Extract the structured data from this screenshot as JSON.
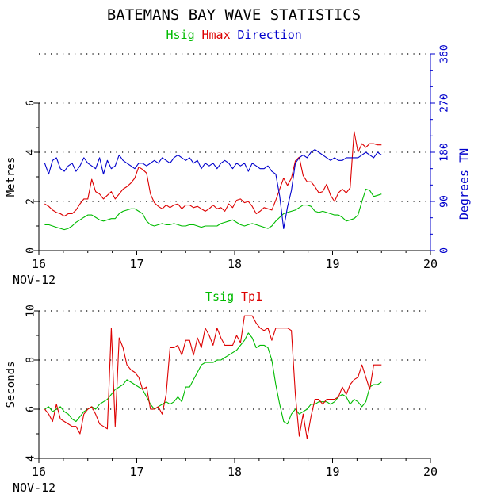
{
  "title": "BATEMANS BAY WAVE STATISTICS",
  "colors": {
    "hsig": "#00bb00",
    "hmax": "#dd0000",
    "direction": "#0000cc",
    "tsig": "#00bb00",
    "tp1": "#dd0000",
    "axis": "#000000",
    "grid": "#000000"
  },
  "chart_data": [
    {
      "type": "line",
      "legend": [
        "Hsig",
        "Hmax",
        "Direction"
      ],
      "x_ticks": [
        "16",
        "17",
        "18",
        "19",
        "20"
      ],
      "x_sub": "NOV-12",
      "xlim": [
        16,
        20
      ],
      "ylabel": "Metres",
      "ylim": [
        0,
        6
      ],
      "y_ticks": [
        "0",
        "2",
        "4",
        "6"
      ],
      "y2label": "Degrees TN",
      "y2lim": [
        0,
        360
      ],
      "y2_ticks": [
        "0",
        "90",
        "180",
        "270",
        "360"
      ],
      "x": [
        16.06,
        16.1,
        16.14,
        16.18,
        16.22,
        16.26,
        16.3,
        16.34,
        16.38,
        16.42,
        16.46,
        16.5,
        16.54,
        16.58,
        16.62,
        16.66,
        16.7,
        16.74,
        16.78,
        16.82,
        16.86,
        16.9,
        16.94,
        16.98,
        17.02,
        17.06,
        17.1,
        17.14,
        17.18,
        17.22,
        17.26,
        17.3,
        17.34,
        17.38,
        17.42,
        17.46,
        17.5,
        17.54,
        17.58,
        17.62,
        17.66,
        17.7,
        17.74,
        17.78,
        17.82,
        17.86,
        17.9,
        17.94,
        17.98,
        18.02,
        18.06,
        18.1,
        18.14,
        18.18,
        18.22,
        18.26,
        18.3,
        18.34,
        18.38,
        18.42,
        18.46,
        18.5,
        18.54,
        18.58,
        18.62,
        18.66,
        18.7,
        18.74,
        18.78,
        18.82,
        18.86,
        18.9,
        18.94,
        18.98,
        19.02,
        19.06,
        19.1,
        19.14,
        19.18,
        19.22,
        19.26,
        19.3,
        19.34,
        19.38,
        19.42,
        19.46,
        19.5
      ],
      "series": [
        {
          "name": "Hsig",
          "axis": "left",
          "values": [
            1.05,
            1.05,
            1.0,
            0.95,
            0.9,
            0.85,
            0.9,
            1.0,
            1.15,
            1.25,
            1.35,
            1.45,
            1.45,
            1.35,
            1.25,
            1.2,
            1.25,
            1.3,
            1.3,
            1.5,
            1.6,
            1.65,
            1.7,
            1.7,
            1.6,
            1.5,
            1.2,
            1.05,
            1.0,
            1.05,
            1.1,
            1.05,
            1.05,
            1.1,
            1.05,
            1.0,
            1.0,
            1.05,
            1.05,
            1.0,
            0.95,
            1.0,
            1.0,
            1.0,
            1.0,
            1.1,
            1.15,
            1.2,
            1.25,
            1.15,
            1.05,
            1.0,
            1.05,
            1.1,
            1.05,
            1.0,
            0.95,
            0.9,
            1.0,
            1.2,
            1.35,
            1.5,
            1.55,
            1.6,
            1.65,
            1.75,
            1.85,
            1.85,
            1.8,
            1.6,
            1.55,
            1.6,
            1.55,
            1.5,
            1.45,
            1.45,
            1.35,
            1.2,
            1.25,
            1.3,
            1.45,
            2.0,
            2.5,
            2.45,
            2.2,
            2.25,
            2.3
          ]
        },
        {
          "name": "Hmax",
          "axis": "left",
          "values": [
            1.9,
            1.8,
            1.65,
            1.55,
            1.5,
            1.4,
            1.5,
            1.5,
            1.65,
            1.9,
            2.1,
            2.1,
            2.9,
            2.4,
            2.3,
            2.1,
            2.25,
            2.4,
            2.1,
            2.3,
            2.5,
            2.6,
            2.75,
            2.95,
            3.4,
            3.3,
            3.15,
            2.3,
            1.95,
            1.8,
            1.7,
            1.85,
            1.75,
            1.85,
            1.9,
            1.7,
            1.85,
            1.85,
            1.75,
            1.8,
            1.7,
            1.6,
            1.7,
            1.85,
            1.7,
            1.75,
            1.6,
            1.9,
            1.75,
            2.05,
            2.1,
            1.95,
            2.0,
            1.8,
            1.5,
            1.6,
            1.75,
            1.7,
            1.65,
            2.05,
            2.5,
            2.95,
            2.65,
            2.95,
            3.65,
            3.8,
            3.05,
            2.8,
            2.8,
            2.6,
            2.35,
            2.4,
            2.7,
            2.25,
            2.0,
            2.35,
            2.5,
            2.35,
            2.55,
            4.85,
            4.0,
            4.35,
            4.2,
            4.35,
            4.35,
            4.3,
            4.3
          ]
        },
        {
          "name": "Direction",
          "axis": "right",
          "values": [
            160,
            140,
            165,
            170,
            150,
            145,
            155,
            160,
            145,
            155,
            170,
            160,
            155,
            150,
            170,
            140,
            165,
            150,
            155,
            175,
            165,
            160,
            155,
            150,
            160,
            160,
            155,
            160,
            165,
            160,
            170,
            165,
            160,
            170,
            175,
            170,
            165,
            170,
            160,
            165,
            150,
            160,
            155,
            160,
            150,
            160,
            165,
            160,
            150,
            160,
            155,
            160,
            145,
            160,
            155,
            150,
            150,
            155,
            145,
            140,
            100,
            40,
            80,
            110,
            160,
            170,
            175,
            170,
            180,
            185,
            180,
            175,
            170,
            165,
            170,
            165,
            165,
            170,
            170,
            170,
            170,
            175,
            180,
            175,
            170,
            180,
            175
          ]
        }
      ]
    },
    {
      "type": "line",
      "legend": [
        "Tsig",
        "Tp1"
      ],
      "x_ticks": [
        "16",
        "17",
        "18",
        "19",
        "20"
      ],
      "x_sub": "NOV-12",
      "xlim": [
        16,
        20
      ],
      "ylabel": "Seconds",
      "ylim": [
        4,
        10
      ],
      "y_ticks": [
        "4",
        "6",
        "8",
        "10"
      ],
      "x": [
        16.06,
        16.1,
        16.14,
        16.18,
        16.22,
        16.26,
        16.3,
        16.34,
        16.38,
        16.42,
        16.46,
        16.5,
        16.54,
        16.58,
        16.62,
        16.66,
        16.7,
        16.74,
        16.78,
        16.82,
        16.86,
        16.9,
        16.94,
        16.98,
        17.02,
        17.06,
        17.1,
        17.14,
        17.18,
        17.22,
        17.26,
        17.3,
        17.34,
        17.38,
        17.42,
        17.46,
        17.5,
        17.54,
        17.58,
        17.62,
        17.66,
        17.7,
        17.74,
        17.78,
        17.82,
        17.86,
        17.9,
        17.94,
        17.98,
        18.02,
        18.06,
        18.1,
        18.14,
        18.18,
        18.22,
        18.26,
        18.3,
        18.34,
        18.38,
        18.42,
        18.46,
        18.5,
        18.54,
        18.58,
        18.62,
        18.66,
        18.7,
        18.74,
        18.78,
        18.82,
        18.86,
        18.9,
        18.94,
        18.98,
        19.02,
        19.06,
        19.1,
        19.14,
        19.18,
        19.22,
        19.26,
        19.3,
        19.34,
        19.38,
        19.42,
        19.46,
        19.5
      ],
      "series": [
        {
          "name": "Tsig",
          "values": [
            6.0,
            6.1,
            5.9,
            6.0,
            6.1,
            5.9,
            5.8,
            5.6,
            5.5,
            5.7,
            5.9,
            6.0,
            6.1,
            6.0,
            6.2,
            6.3,
            6.4,
            6.6,
            6.8,
            6.9,
            7.0,
            7.2,
            7.1,
            7.0,
            6.9,
            6.8,
            6.5,
            6.2,
            6.0,
            6.1,
            6.2,
            6.3,
            6.2,
            6.3,
            6.5,
            6.3,
            6.9,
            6.9,
            7.2,
            7.5,
            7.8,
            7.9,
            7.9,
            7.9,
            8.0,
            8.0,
            8.1,
            8.2,
            8.3,
            8.4,
            8.6,
            8.8,
            9.1,
            8.9,
            8.5,
            8.6,
            8.6,
            8.5,
            8.0,
            7.0,
            6.2,
            5.5,
            5.4,
            5.8,
            6.0,
            5.8,
            5.9,
            6.0,
            6.2,
            6.2,
            6.3,
            6.3,
            6.3,
            6.2,
            6.3,
            6.5,
            6.6,
            6.5,
            6.2,
            6.4,
            6.3,
            6.1,
            6.3,
            6.9,
            7.0,
            7.0,
            7.1
          ]
        },
        {
          "name": "Tp1",
          "values": [
            6.0,
            5.8,
            5.5,
            6.2,
            5.6,
            5.5,
            5.4,
            5.3,
            5.3,
            5.0,
            5.8,
            6.0,
            6.1,
            5.8,
            5.4,
            5.3,
            5.2,
            9.3,
            5.3,
            8.9,
            8.5,
            7.8,
            7.6,
            7.5,
            7.3,
            6.8,
            6.9,
            6.0,
            6.0,
            6.1,
            5.8,
            6.6,
            8.5,
            8.5,
            8.6,
            8.2,
            8.8,
            8.8,
            8.2,
            8.9,
            8.5,
            9.3,
            9.0,
            8.6,
            9.3,
            8.9,
            8.6,
            8.6,
            8.6,
            9.0,
            8.7,
            9.8,
            9.8,
            9.8,
            9.5,
            9.3,
            9.2,
            9.3,
            8.8,
            9.3,
            9.3,
            9.3,
            9.3,
            9.2,
            6.6,
            4.9,
            5.8,
            4.8,
            5.7,
            6.4,
            6.4,
            6.2,
            6.4,
            6.4,
            6.4,
            6.5,
            6.9,
            6.6,
            7.0,
            7.2,
            7.3,
            7.8,
            7.3,
            6.8,
            7.8,
            7.8,
            7.8
          ]
        }
      ]
    }
  ]
}
